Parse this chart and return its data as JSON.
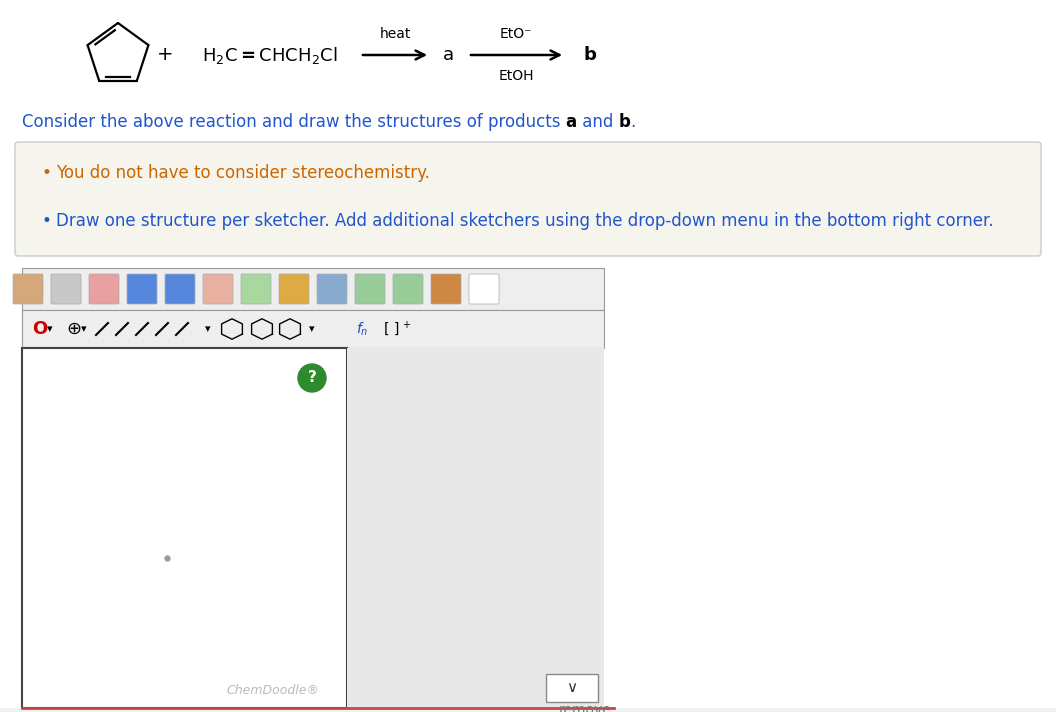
{
  "bg_color": "#ffffff",
  "text_color_black": "#000000",
  "text_color_blue": "#2255cc",
  "text_color_orange": "#cc6600",
  "text_color_red": "#cc0000",
  "bullet_box_bg": "#f5f5ee",
  "bullet_box_border": "#cccccc",
  "toolbar_bg": "#eeeeee",
  "toolbar_border": "#999999",
  "canvas_bg": "#ffffff",
  "canvas_border": "#444444",
  "bottom_panel_bg": "#f0f0f0",
  "bottom_border_color": "#cc4444",
  "remove_text_color": "#777777",
  "chemdoodle_text_color": "#bbbbbb",
  "question_mark_color": "#2d8a2d",
  "gray_dot_color": "#999999",
  "heat_label": "heat",
  "eto_label": "EtO⁻",
  "etoh_label": "EtOH",
  "bullet1": "You do not have to consider stereochemistry.",
  "bullet2": "Draw one structure per sketcher. Add additional sketchers using the drop-down menu in the bottom right corner."
}
